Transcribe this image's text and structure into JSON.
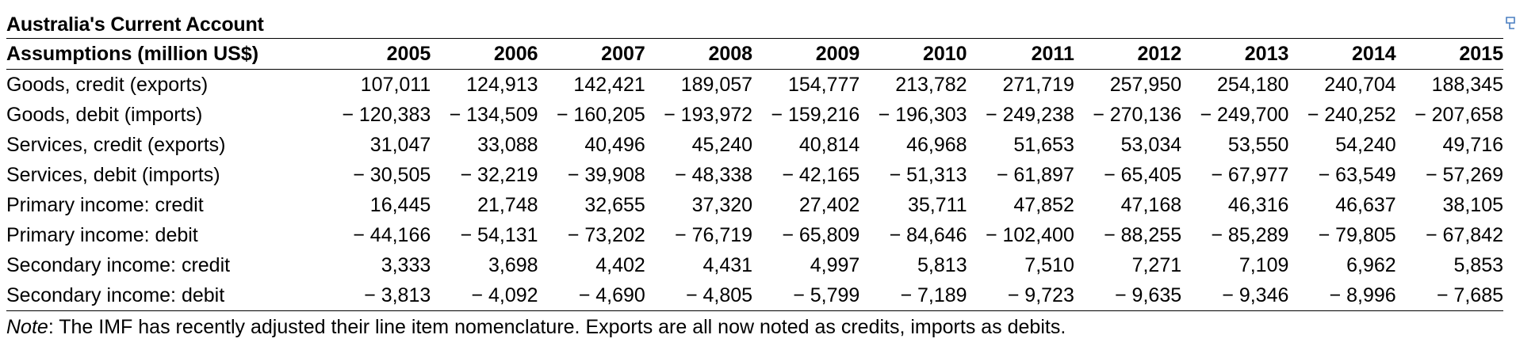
{
  "title": "Australia's Current Account",
  "header": {
    "label": "Assumptions (million US$)",
    "years": [
      "2005",
      "2006",
      "2007",
      "2008",
      "2009",
      "2010",
      "2011",
      "2012",
      "2013",
      "2014",
      "2015"
    ]
  },
  "rows": [
    {
      "label": "Goods, credit (exports)",
      "values": [
        "107,011",
        "124,913",
        "142,421",
        "189,057",
        "154,777",
        "213,782",
        "271,719",
        "257,950",
        "254,180",
        "240,704",
        "188,345"
      ]
    },
    {
      "label": "Goods, debit (imports)",
      "values": [
        "− 120,383",
        "− 134,509",
        "− 160,205",
        "− 193,972",
        "− 159,216",
        "− 196,303",
        "− 249,238",
        "− 270,136",
        "− 249,700",
        "− 240,252",
        "− 207,658"
      ]
    },
    {
      "label": "Services, credit (exports)",
      "values": [
        "31,047",
        "33,088",
        "40,496",
        "45,240",
        "40,814",
        "46,968",
        "51,653",
        "53,034",
        "53,550",
        "54,240",
        "49,716"
      ]
    },
    {
      "label": "Services, debit (imports)",
      "values": [
        "− 30,505",
        "− 32,219",
        "− 39,908",
        "− 48,338",
        "− 42,165",
        "− 51,313",
        "− 61,897",
        "− 65,405",
        "− 67,977",
        "− 63,549",
        "− 57,269"
      ]
    },
    {
      "label": "Primary income: credit",
      "values": [
        "16,445",
        "21,748",
        "32,655",
        "37,320",
        "27,402",
        "35,711",
        "47,852",
        "47,168",
        "46,316",
        "46,637",
        "38,105"
      ]
    },
    {
      "label": "Primary income: debit",
      "values": [
        "− 44,166",
        "− 54,131",
        "− 73,202",
        "− 76,719",
        "− 65,809",
        "− 84,646",
        "− 102,400",
        "− 88,255",
        "− 85,289",
        "− 79,805",
        "− 67,842"
      ]
    },
    {
      "label": "Secondary income: credit",
      "values": [
        "3,333",
        "3,698",
        "4,402",
        "4,431",
        "4,997",
        "5,813",
        "7,510",
        "7,271",
        "7,109",
        "6,962",
        "5,853"
      ]
    },
    {
      "label": "Secondary income: debit",
      "values": [
        "− 3,813",
        "− 4,092",
        "− 4,690",
        "− 4,805",
        "− 5,799",
        "− 7,189",
        "− 9,723",
        "− 9,635",
        "− 9,346",
        "− 8,996",
        "− 7,685"
      ]
    }
  ],
  "note": {
    "prefix": "Note",
    "text": ": The IMF has recently adjusted their line item nomenclature. Exports are all now noted as credits, imports as debits."
  },
  "colors": {
    "text": "#000000",
    "rule": "#000000",
    "icon": "#4a7fc1"
  }
}
